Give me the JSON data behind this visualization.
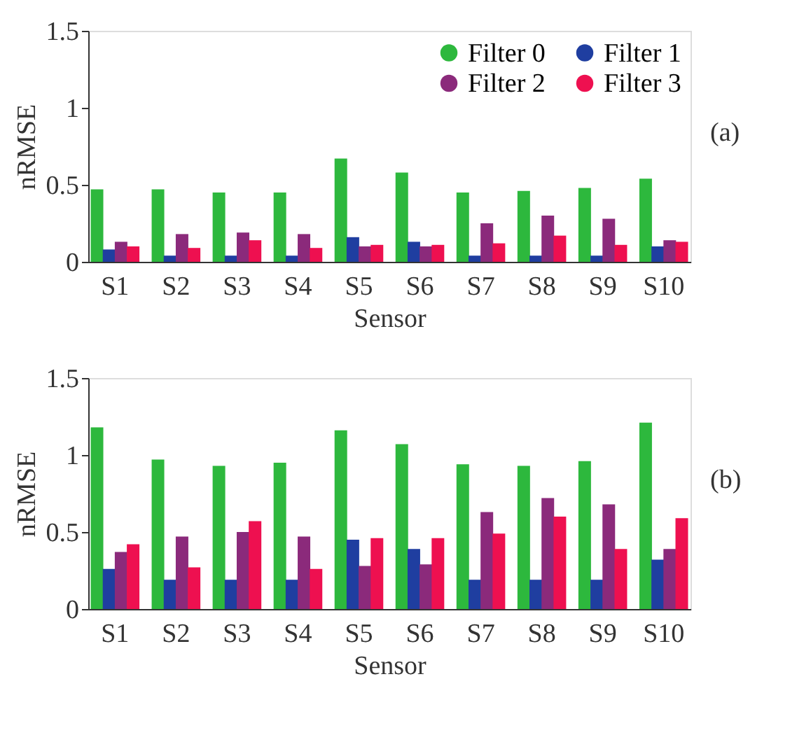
{
  "chart_data": [
    {
      "type": "bar",
      "xlabel": "Sensor",
      "ylabel": "nRMSE",
      "categories": [
        "S1",
        "S2",
        "S3",
        "S4",
        "S5",
        "S6",
        "S7",
        "S8",
        "S9",
        "S10"
      ],
      "ylim": [
        0,
        1.5
      ],
      "yticks": [
        0,
        0.5,
        1,
        1.5
      ],
      "grid": false,
      "legend": "top right",
      "annotations": [
        "(a)"
      ],
      "series": [
        {
          "name": "Filter 0",
          "color": "#2db83d",
          "values": [
            0.47,
            0.47,
            0.45,
            0.45,
            0.67,
            0.58,
            0.45,
            0.46,
            0.48,
            0.54
          ]
        },
        {
          "name": "Filter 1",
          "color": "#1f3ea0",
          "values": [
            0.08,
            0.04,
            0.04,
            0.04,
            0.16,
            0.13,
            0.04,
            0.04,
            0.04,
            0.1
          ]
        },
        {
          "name": "Filter 2",
          "color": "#8b2a7b",
          "values": [
            0.13,
            0.18,
            0.19,
            0.18,
            0.1,
            0.1,
            0.25,
            0.3,
            0.28,
            0.14
          ]
        },
        {
          "name": "Filter 3",
          "color": "#ee1050",
          "values": [
            0.1,
            0.09,
            0.14,
            0.09,
            0.11,
            0.11,
            0.12,
            0.17,
            0.11,
            0.13
          ]
        }
      ]
    },
    {
      "type": "bar",
      "xlabel": "Sensor",
      "ylabel": "nRMSE",
      "categories": [
        "S1",
        "S2",
        "S3",
        "S4",
        "S5",
        "S6",
        "S7",
        "S8",
        "S9",
        "S10"
      ],
      "ylim": [
        0,
        1.5
      ],
      "yticks": [
        0,
        0.5,
        1,
        1.5
      ],
      "grid": false,
      "legend": false,
      "annotations": [
        "(b)"
      ],
      "series": [
        {
          "color": "#2db83d",
          "values": [
            1.18,
            0.97,
            0.93,
            0.95,
            1.16,
            1.07,
            0.94,
            0.93,
            0.96,
            1.21
          ]
        },
        {
          "color": "#1f3ea0",
          "values": [
            0.26,
            0.19,
            0.19,
            0.19,
            0.45,
            0.39,
            0.19,
            0.19,
            0.19,
            0.32
          ]
        },
        {
          "color": "#8b2a7b",
          "values": [
            0.37,
            0.47,
            0.5,
            0.47,
            0.28,
            0.29,
            0.63,
            0.72,
            0.68,
            0.39
          ]
        },
        {
          "color": "#ee1050",
          "values": [
            0.42,
            0.27,
            0.57,
            0.26,
            0.46,
            0.46,
            0.49,
            0.6,
            0.39,
            0.59
          ]
        }
      ]
    }
  ]
}
